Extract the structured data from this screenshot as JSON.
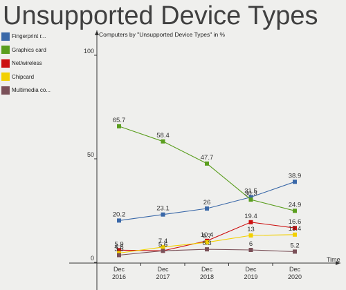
{
  "title": "Unsupported Device Types",
  "chart_data": {
    "type": "line",
    "title": "Unsupported Device Types",
    "subtitle": "Computers by \"Unsupported Device Types\" in %",
    "xlabel": "Time",
    "ylabel": "",
    "categories": [
      "Dec 2016",
      "Dec 2017",
      "Dec 2018",
      "Dec 2019",
      "Dec 2020"
    ],
    "ylim": [
      0,
      100
    ],
    "yticks": [
      "0",
      "50",
      "100"
    ],
    "grid": false,
    "legend_position": "left",
    "series": [
      {
        "name": "Fingerprint r...",
        "color": "#3a68a8",
        "values": [
          20.2,
          23.1,
          26,
          31.5,
          38.9
        ],
        "labels": [
          "20.2",
          "23.1",
          "26",
          "31.5",
          "38.9"
        ]
      },
      {
        "name": "Graphics card",
        "color": "#5a9e1e",
        "values": [
          65.7,
          58.4,
          47.7,
          30.3,
          24.9
        ],
        "labels": [
          "65.7",
          "58.4",
          "47.7",
          "30.3",
          "24.9"
        ]
      },
      {
        "name": "Net/wireless",
        "color": "#cc1010",
        "values": [
          5.9,
          5.6,
          10.4,
          19.4,
          16.6
        ],
        "labels": [
          "5.9",
          "5.6",
          "10.4",
          "19.4",
          "16.6"
        ]
      },
      {
        "name": "Chipcard",
        "color": "#f2d000",
        "values": [
          4.5,
          7.4,
          9.7,
          13,
          13.4
        ],
        "labels": [
          "4.5",
          "7.4",
          "9.7",
          "13",
          "13.4"
        ]
      },
      {
        "name": "Multimedia co...",
        "color": "#7a5058",
        "values": [
          3.5,
          5.6,
          6.3,
          6,
          5.2
        ],
        "labels": [
          "3.5",
          "5.6",
          "6.3",
          "6",
          "5.2"
        ]
      }
    ]
  }
}
